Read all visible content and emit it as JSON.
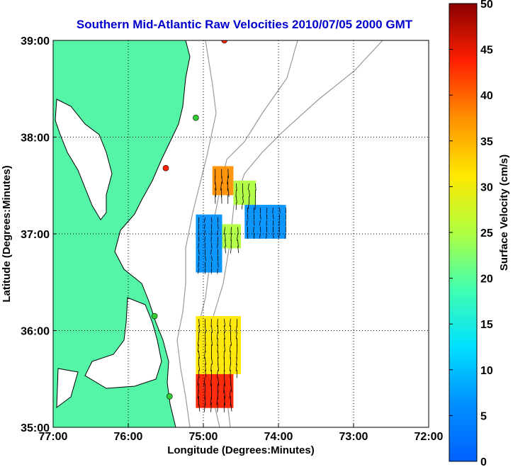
{
  "chart_data": {
    "type": "map-vector",
    "title": "Southern Mid-Atlantic Raw Velocities 2010/07/05 2000 GMT",
    "xlabel": "Longitude (Degrees:Minutes)",
    "ylabel": "Latitude (Degrees:Minutes)",
    "xlim": [
      -77,
      -72
    ],
    "ylim": [
      35,
      39
    ],
    "x_ticks": [
      {
        "value": -77,
        "label": "77:00"
      },
      {
        "value": -76,
        "label": "76:00"
      },
      {
        "value": -75,
        "label": "75:00"
      },
      {
        "value": -74,
        "label": "74:00"
      },
      {
        "value": -73,
        "label": "73:00"
      },
      {
        "value": -72,
        "label": "72:00"
      }
    ],
    "y_ticks": [
      {
        "value": 35,
        "label": "35:00"
      },
      {
        "value": 36,
        "label": "36:00"
      },
      {
        "value": 37,
        "label": "37:00"
      },
      {
        "value": 38,
        "label": "38:00"
      },
      {
        "value": 39,
        "label": "39:00"
      }
    ],
    "grid": true,
    "colorbar": {
      "label": "Surface Velocity (cm/s)",
      "range": [
        0,
        50
      ],
      "ticks": [
        "0",
        "5",
        "10",
        "15",
        "20",
        "25",
        "30",
        "35",
        "40",
        "45",
        "50"
      ],
      "colormap": "jet"
    },
    "velocity_regions": [
      {
        "lon": [
          -74.88,
          -74.6
        ],
        "lat": [
          37.4,
          37.7
        ],
        "speed": 42
      },
      {
        "lon": [
          -74.6,
          -74.3
        ],
        "lat": [
          37.3,
          37.55
        ],
        "speed": 25
      },
      {
        "lon": [
          -74.45,
          -73.9
        ],
        "lat": [
          36.95,
          37.3
        ],
        "speed": 12
      },
      {
        "lon": [
          -75.1,
          -74.75
        ],
        "lat": [
          36.6,
          37.2
        ],
        "speed": 12
      },
      {
        "lon": [
          -74.75,
          -74.5
        ],
        "lat": [
          36.85,
          37.1
        ],
        "speed": 28
      },
      {
        "lon": [
          -75.1,
          -74.5
        ],
        "lat": [
          35.55,
          36.15
        ],
        "speed": 32
      },
      {
        "lon": [
          -75.1,
          -74.6
        ],
        "lat": [
          35.2,
          35.55
        ],
        "speed": 47
      }
    ],
    "stations": [
      {
        "lon": -74.72,
        "lat": 39.0,
        "color": "#ff2200"
      },
      {
        "lon": -75.1,
        "lat": 38.2,
        "color": "#33cc33"
      },
      {
        "lon": -75.5,
        "lat": 37.68,
        "color": "#ff2200"
      },
      {
        "lon": -75.65,
        "lat": 36.15,
        "color": "#33cc33"
      },
      {
        "lon": -75.45,
        "lat": 35.32,
        "color": "#33cc33"
      }
    ],
    "land_color": "#55f5a8",
    "water_color": "#ffffff",
    "bathymetry_color": "#999999"
  }
}
